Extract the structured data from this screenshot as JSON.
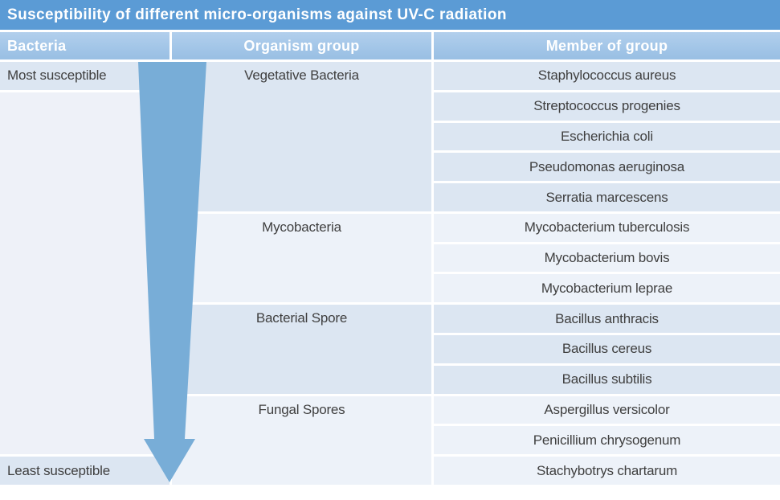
{
  "title": "Susceptibility of different micro-organisms against UV-C radiation",
  "susceptibility_axis": {
    "top_label": "Most susceptible",
    "bottom_label": "Least susceptible",
    "arrow_direction": "down"
  },
  "colors": {
    "title_bg": "#5b9bd5",
    "header_bg": "#a3c6e8",
    "header_text": "#ffffff",
    "row_dark": "#dce6f2",
    "row_light": "#edf2f9",
    "col1_bg": "#eef1f8",
    "arrow": "#78add7",
    "body_text": "#3f3f3f"
  },
  "chart_data": {
    "type": "table",
    "title": "Susceptibility of different micro-organisms against UV-C radiation",
    "columns": [
      "Bacteria",
      "Organism group",
      "Member of group"
    ],
    "ordering": "top row = most susceptible, bottom row = least susceptible",
    "groups": [
      {
        "name": "Vegetative Bacteria",
        "members": [
          "Staphylococcus aureus",
          "Streptococcus progenies",
          "Escherichia coli",
          "Pseudomonas aeruginosa",
          "Serratia marcescens"
        ]
      },
      {
        "name": "Mycobacteria",
        "members": [
          "Mycobacterium tuberculosis",
          "Mycobacterium bovis",
          "Mycobacterium leprae"
        ]
      },
      {
        "name": "Bacterial Spore",
        "members": [
          "Bacillus anthracis",
          "Bacillus cereus",
          "Bacillus subtilis"
        ]
      },
      {
        "name": "Fungal Spores",
        "members": [
          "Aspergillus versicolor",
          "Penicillium chrysogenum",
          "Stachybotrys chartarum"
        ]
      }
    ]
  }
}
